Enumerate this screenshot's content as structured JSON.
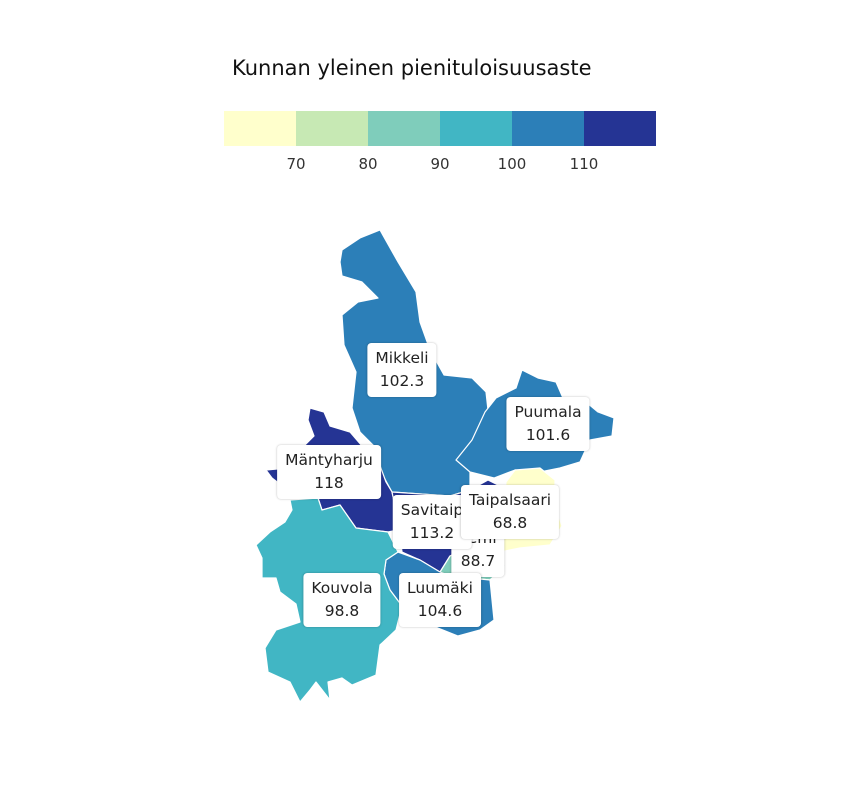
{
  "legend": {
    "title": "Kunnan yleinen pienituloisuusaste",
    "colors": [
      "#ffffcc",
      "#c7e9b4",
      "#7fcdbb",
      "#41b6c4",
      "#2c7fb8",
      "#253494"
    ],
    "ticks": [
      "70",
      "80",
      "90",
      "100",
      "110"
    ]
  },
  "regions": [
    {
      "name": "Mikkeli",
      "value": "102.3",
      "color": "#2c7fb8",
      "icon": "region-shape"
    },
    {
      "name": "Puumala",
      "value": "101.6",
      "color": "#2c7fb8",
      "icon": "region-shape"
    },
    {
      "name": "Mäntyharju",
      "value": "118",
      "color": "#253494",
      "icon": "region-shape"
    },
    {
      "name": "Savitaip",
      "value": "113.2",
      "color": "#253494",
      "icon": "region-shape"
    },
    {
      "name": "Taipalsaari",
      "value": "68.8",
      "color": "#ffffcc",
      "icon": "region-shape"
    },
    {
      "name": "Lemi",
      "value": "88.7",
      "color": "#7fcdbb",
      "icon": "region-shape"
    },
    {
      "name": "Kouvola",
      "value": "98.8",
      "color": "#41b6c4",
      "icon": "region-shape"
    },
    {
      "name": "Luumäki",
      "value": "104.6",
      "color": "#2c7fb8",
      "icon": "region-shape"
    }
  ]
}
